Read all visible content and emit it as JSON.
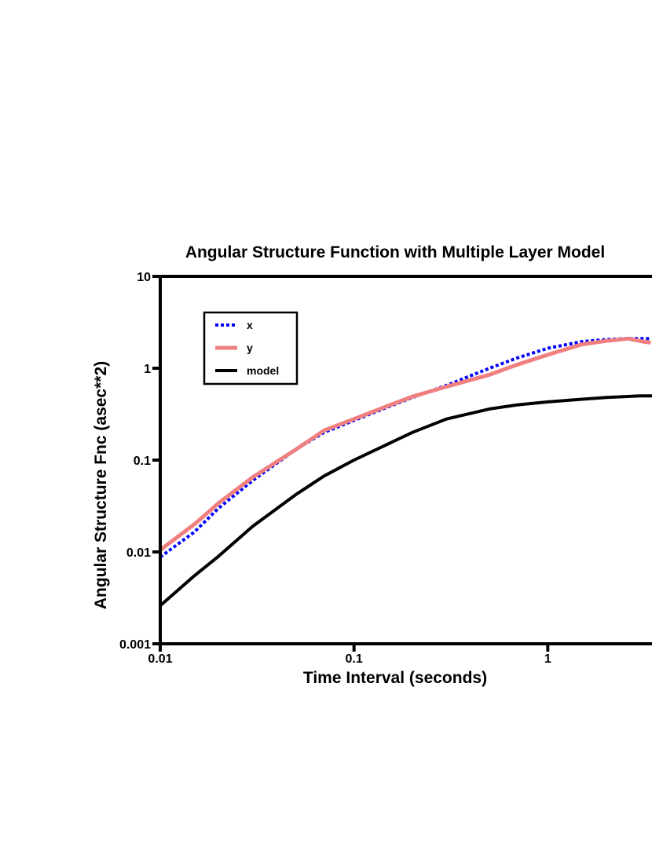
{
  "chart_data": {
    "type": "line",
    "title": "Angular Structure Function with Multiple Layer Model",
    "xlabel": "Time Interval (seconds)",
    "ylabel": "Angular Structure Fnc (asec**2)",
    "x_scale": "log",
    "y_scale": "log",
    "xlim": [
      0.01,
      3.45
    ],
    "ylim": [
      0.001,
      10
    ],
    "x_ticks": [
      "0.01",
      "0.1",
      "1"
    ],
    "y_ticks": [
      "0.001",
      "0.01",
      "0.1",
      "1",
      "10"
    ],
    "grid": false,
    "legend_position": "top-left",
    "series": [
      {
        "name": "x",
        "color": "#0000ff",
        "style": "dotted",
        "points": [
          [
            0.01,
            0.0088
          ],
          [
            0.015,
            0.0165
          ],
          [
            0.02,
            0.03
          ],
          [
            0.03,
            0.06
          ],
          [
            0.05,
            0.13
          ],
          [
            0.07,
            0.2
          ],
          [
            0.1,
            0.27
          ],
          [
            0.15,
            0.38
          ],
          [
            0.2,
            0.48
          ],
          [
            0.3,
            0.65
          ],
          [
            0.5,
            1.0
          ],
          [
            0.7,
            1.3
          ],
          [
            1.0,
            1.65
          ],
          [
            1.5,
            1.95
          ],
          [
            2.0,
            2.05
          ],
          [
            2.5,
            2.1
          ],
          [
            3.4,
            2.1
          ]
        ]
      },
      {
        "name": "y",
        "color": "#f08080",
        "style": "solid",
        "points": [
          [
            0.01,
            0.0105
          ],
          [
            0.015,
            0.02
          ],
          [
            0.02,
            0.034
          ],
          [
            0.03,
            0.065
          ],
          [
            0.05,
            0.13
          ],
          [
            0.07,
            0.21
          ],
          [
            0.1,
            0.28
          ],
          [
            0.15,
            0.39
          ],
          [
            0.2,
            0.49
          ],
          [
            0.3,
            0.63
          ],
          [
            0.5,
            0.85
          ],
          [
            0.7,
            1.1
          ],
          [
            1.0,
            1.4
          ],
          [
            1.5,
            1.82
          ],
          [
            2.0,
            1.98
          ],
          [
            2.6,
            2.1
          ],
          [
            3.1,
            1.95
          ],
          [
            3.4,
            1.9
          ]
        ]
      },
      {
        "name": "model",
        "color": "#000000",
        "style": "solid",
        "points": [
          [
            0.01,
            0.0026
          ],
          [
            0.015,
            0.0055
          ],
          [
            0.02,
            0.009
          ],
          [
            0.03,
            0.019
          ],
          [
            0.05,
            0.042
          ],
          [
            0.07,
            0.067
          ],
          [
            0.1,
            0.1
          ],
          [
            0.15,
            0.15
          ],
          [
            0.2,
            0.2
          ],
          [
            0.3,
            0.28
          ],
          [
            0.5,
            0.36
          ],
          [
            0.7,
            0.4
          ],
          [
            1.0,
            0.43
          ],
          [
            1.5,
            0.46
          ],
          [
            2.0,
            0.48
          ],
          [
            3.0,
            0.5
          ],
          [
            3.45,
            0.5
          ]
        ]
      }
    ]
  }
}
